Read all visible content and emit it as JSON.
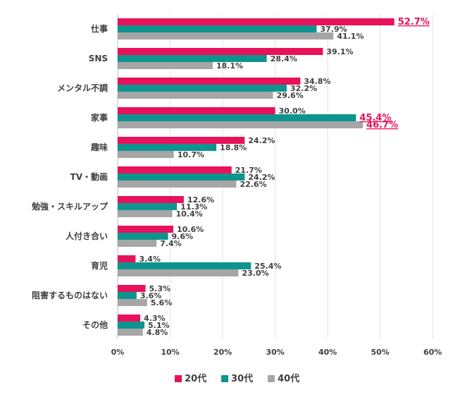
{
  "chart_data": {
    "type": "bar",
    "orientation": "horizontal",
    "categories": [
      "仕事",
      "SNS",
      "メンタル不調",
      "家事",
      "趣味",
      "TV・動画",
      "勉強・スキルアップ",
      "人付き合い",
      "育児",
      "阻害するものはない",
      "その他"
    ],
    "series": [
      {
        "name": "20代",
        "color": "#E8115B",
        "values": [
          52.7,
          39.1,
          34.8,
          30.0,
          24.2,
          21.7,
          12.6,
          10.6,
          3.4,
          5.3,
          4.3
        ],
        "labels": [
          "52.7%",
          "39.1%",
          "34.8%",
          "30.0%",
          "24.2%",
          "21.7%",
          "12.6%",
          "10.6%",
          "3.4%",
          "5.3%",
          "4.3%"
        ]
      },
      {
        "name": "30代",
        "color": "#0E948E",
        "values": [
          37.9,
          28.4,
          32.2,
          45.4,
          18.8,
          24.2,
          11.3,
          9.6,
          25.4,
          3.6,
          5.1
        ],
        "labels": [
          "37.9%",
          "28.4%",
          "32.2%",
          "45.4%",
          "18.8%",
          "24.2%",
          "11.3%",
          "9.6%",
          "25.4%",
          "3.6%",
          "5.1%"
        ]
      },
      {
        "name": "40代",
        "color": "#A6A6A6",
        "values": [
          41.1,
          18.1,
          29.6,
          46.7,
          10.7,
          22.6,
          10.4,
          7.4,
          23.0,
          5.6,
          4.8
        ],
        "labels": [
          "41.1%",
          "18.1%",
          "29.6%",
          "46.7%",
          "10.7%",
          "22.6%",
          "10.4%",
          "7.4%",
          "23.0%",
          "5.6%",
          "4.8%"
        ]
      }
    ],
    "highlighted": [
      {
        "series": 0,
        "category": 0
      },
      {
        "series": 1,
        "category": 3
      },
      {
        "series": 2,
        "category": 3
      }
    ],
    "highlight_color": "#E8115B",
    "xlim": [
      0,
      60
    ],
    "xticks": [
      0,
      10,
      20,
      30,
      40,
      50,
      60
    ],
    "xtick_labels": [
      "0%",
      "10%",
      "20%",
      "30%",
      "40%",
      "50%",
      "60%"
    ],
    "grid": true,
    "legend_position": "bottom",
    "title": "",
    "xlabel": "",
    "ylabel": ""
  }
}
